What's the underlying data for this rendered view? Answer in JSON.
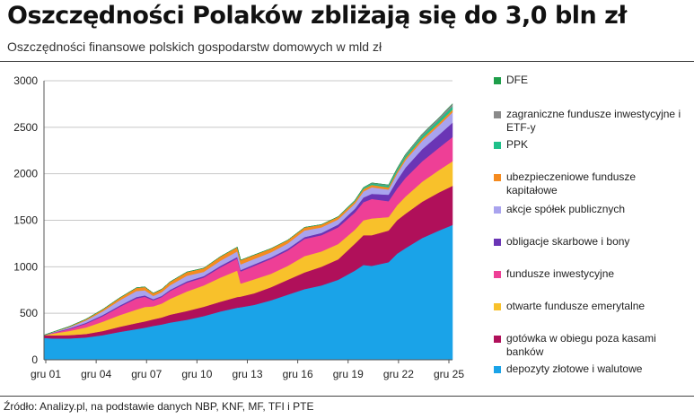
{
  "title": "Oszczędności Polaków zbliżają się do 3,0 bln zł",
  "subtitle": "Oszczędności finansowe polskich gospodarstw domowych w mld zł",
  "source": "Źródło: Analizy.pl, na podstawie danych NBP, KNF, MF, TFI i PTE",
  "colors": {
    "deposits": "#1aa3e8",
    "cash": "#b0105a",
    "ofe": "#f8c12b",
    "funds": "#ee3f96",
    "bonds": "#6a35b5",
    "stocks": "#a9a3ee",
    "insurance": "#f58b1f",
    "ppk": "#1fc08a",
    "etf": "#8a8a8a",
    "dfe": "#1e9e4a"
  },
  "chart_data": {
    "type": "area",
    "stacked": true,
    "title": "Oszczędności Polaków zbliżają się do 3,0 bln zł",
    "ylabel": "mld zł",
    "ylim": [
      0,
      3000
    ],
    "yticks": [
      0,
      500,
      1000,
      1500,
      2000,
      2500,
      3000
    ],
    "xticks": [
      "gru 01",
      "gru 04",
      "gru 07",
      "gru 10",
      "gru 13",
      "gru 16",
      "gru 19",
      "gru 22",
      "gru 25"
    ],
    "xrange": [
      2001.5,
      2025.8
    ],
    "x": [
      2001.5,
      2002.0,
      2003.0,
      2004.0,
      2005.0,
      2006.0,
      2007.0,
      2007.5,
      2008.0,
      2008.5,
      2009.0,
      2010.0,
      2011.0,
      2012.0,
      2013.0,
      2013.2,
      2014.0,
      2015.0,
      2016.0,
      2017.0,
      2018.0,
      2019.0,
      2020.0,
      2020.5,
      2021.0,
      2022.0,
      2022.5,
      2023.0,
      2024.0,
      2025.0,
      2025.8
    ],
    "series": [
      {
        "name": "depozyty złotowe i walutowe",
        "key": "deposits",
        "values": [
          235,
          230,
          230,
          240,
          265,
          300,
          330,
          345,
          365,
          380,
          400,
          430,
          470,
          520,
          560,
          565,
          590,
          640,
          700,
          760,
          800,
          860,
          960,
          1020,
          1010,
          1050,
          1140,
          1200,
          1310,
          1390,
          1450
        ]
      },
      {
        "name": "gotówka w obiegu poza kasami banków",
        "key": "cash",
        "values": [
          30,
          32,
          35,
          38,
          45,
          55,
          65,
          68,
          70,
          75,
          85,
          95,
          100,
          105,
          115,
          115,
          125,
          140,
          160,
          180,
          200,
          220,
          290,
          320,
          330,
          340,
          360,
          370,
          390,
          410,
          420
        ]
      },
      {
        "name": "otwarte fundusze emerytalne",
        "key": "ofe",
        "values": [
          0,
          20,
          45,
          70,
          100,
          125,
          145,
          155,
          140,
          150,
          170,
          210,
          230,
          260,
          285,
          140,
          150,
          145,
          150,
          175,
          165,
          165,
          150,
          160,
          180,
          145,
          160,
          185,
          215,
          240,
          265
        ]
      },
      {
        "name": "fundusze inwestycyjne",
        "key": "funds",
        "values": [
          0,
          5,
          20,
          40,
          60,
          90,
          120,
          110,
          65,
          70,
          85,
          95,
          85,
          110,
          130,
          130,
          145,
          160,
          165,
          185,
          175,
          180,
          185,
          195,
          210,
          170,
          180,
          200,
          220,
          240,
          260
        ]
      },
      {
        "name": "obligacje skarbowe i bony",
        "key": "bonds",
        "values": [
          0,
          3,
          8,
          10,
          12,
          14,
          15,
          15,
          12,
          12,
          12,
          14,
          15,
          16,
          16,
          16,
          16,
          16,
          18,
          20,
          24,
          30,
          40,
          50,
          55,
          70,
          90,
          110,
          130,
          140,
          155
        ]
      },
      {
        "name": "akcje spółek publicznych",
        "key": "stocks",
        "values": [
          0,
          4,
          12,
          25,
          40,
          55,
          65,
          55,
          35,
          40,
          50,
          60,
          45,
          55,
          60,
          60,
          58,
          55,
          58,
          70,
          60,
          55,
          55,
          65,
          70,
          55,
          70,
          80,
          90,
          100,
          110
        ]
      },
      {
        "name": "ubezpieczeniowe fundusze kapitałowe",
        "key": "insurance",
        "values": [
          0,
          3,
          8,
          14,
          20,
          28,
          35,
          36,
          30,
          32,
          36,
          40,
          40,
          44,
          46,
          46,
          44,
          40,
          36,
          34,
          30,
          28,
          26,
          26,
          26,
          24,
          24,
          25,
          26,
          27,
          28
        ]
      },
      {
        "name": "PPK",
        "key": "ppk",
        "values": [
          0,
          0,
          0,
          0,
          0,
          0,
          0,
          0,
          0,
          0,
          0,
          0,
          0,
          0,
          0,
          0,
          0,
          0,
          0,
          0,
          0,
          2,
          8,
          12,
          15,
          18,
          22,
          25,
          30,
          33,
          35
        ]
      },
      {
        "name": "zagraniczne fundusze inwestycyjne i ETF-y",
        "key": "etf",
        "values": [
          0,
          0,
          0,
          0,
          0,
          0,
          0,
          0,
          0,
          0,
          0,
          0,
          0,
          0,
          0,
          0,
          0,
          0,
          0,
          0,
          0,
          0,
          2,
          4,
          6,
          8,
          10,
          13,
          18,
          24,
          30
        ]
      },
      {
        "name": "DFE",
        "key": "dfe",
        "values": [
          0,
          0,
          0,
          0,
          0,
          0,
          0,
          0,
          0,
          0,
          0,
          0,
          0,
          0,
          0,
          0,
          0,
          0,
          0,
          0,
          0,
          0,
          0,
          0,
          0,
          0,
          0,
          0,
          0,
          0,
          0
        ]
      }
    ],
    "legend": [
      {
        "label": "DFE",
        "key": "dfe"
      },
      {
        "label": "zagraniczne fundusze inwestycyjne i ETF-y",
        "key": "etf"
      },
      {
        "label": "PPK",
        "key": "ppk"
      },
      {
        "label": "ubezpieczeniowe fundusze kapitałowe",
        "key": "insurance"
      },
      {
        "label": "akcje spółek publicznych",
        "key": "stocks"
      },
      {
        "label": "obligacje skarbowe i bony",
        "key": "bonds"
      },
      {
        "label": "fundusze inwestycyjne",
        "key": "funds"
      },
      {
        "label": "otwarte fundusze emerytalne",
        "key": "ofe"
      },
      {
        "label": "gotówka w obiegu poza kasami banków",
        "key": "cash"
      },
      {
        "label": "depozyty złotowe i walutowe",
        "key": "deposits"
      }
    ]
  }
}
